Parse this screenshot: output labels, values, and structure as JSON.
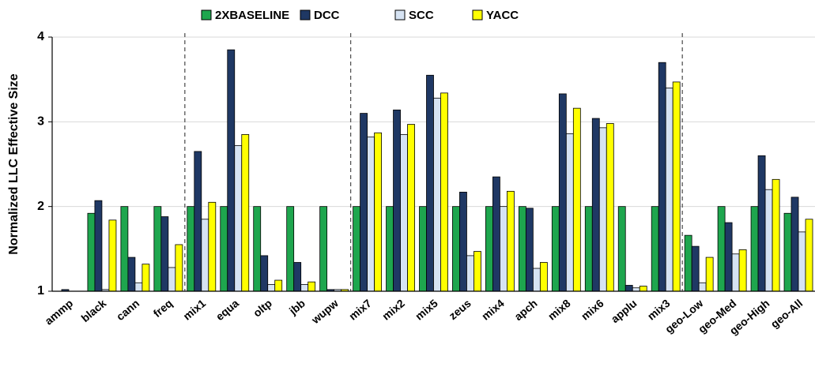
{
  "chart_data": {
    "type": "bar",
    "y_label": "Normalized LLC Effective Size",
    "categories": [
      "ammp",
      "black",
      "cann",
      "freq",
      "mix1",
      "equa",
      "oltp",
      "jbb",
      "wupw",
      "mix7",
      "mix2",
      "mix5",
      "zeus",
      "mix4",
      "apch",
      "mix8",
      "mix6",
      "applu",
      "mix3",
      "geo-Low",
      "geo-Med",
      "geo-High",
      "geo-All"
    ],
    "series": [
      {
        "name": "2XBASELINE",
        "color": "#1ea64e",
        "values": [
          1.0,
          1.92,
          2.0,
          2.0,
          2.0,
          2.0,
          2.0,
          2.0,
          2.0,
          2.0,
          2.0,
          2.0,
          2.0,
          2.0,
          2.0,
          2.0,
          2.0,
          2.0,
          2.0,
          1.66,
          2.0,
          2.0,
          1.92
        ]
      },
      {
        "name": "DCC",
        "color": "#1f3864",
        "values": [
          1.02,
          2.07,
          1.4,
          1.88,
          2.65,
          3.85,
          1.42,
          1.34,
          1.02,
          3.1,
          3.14,
          3.55,
          2.17,
          2.35,
          1.98,
          3.33,
          3.04,
          1.07,
          3.7,
          1.53,
          1.81,
          2.6,
          2.11
        ]
      },
      {
        "name": "SCC",
        "color": "#d6e3f3",
        "values": [
          1.0,
          1.02,
          1.1,
          1.28,
          1.85,
          2.72,
          1.08,
          1.08,
          1.02,
          2.82,
          2.85,
          3.28,
          1.42,
          2.0,
          1.27,
          2.86,
          2.93,
          1.04,
          3.4,
          1.1,
          1.44,
          2.2,
          1.7
        ]
      },
      {
        "name": "YACC",
        "color": "#ffff00",
        "values": [
          1.0,
          1.84,
          1.32,
          1.55,
          2.05,
          2.85,
          1.13,
          1.11,
          1.02,
          2.87,
          2.97,
          3.34,
          1.47,
          2.18,
          1.34,
          3.16,
          2.98,
          1.06,
          3.47,
          1.4,
          1.49,
          2.32,
          1.85
        ]
      }
    ],
    "ylim": [
      1,
      4
    ],
    "yticks": [
      1,
      2,
      3,
      4
    ],
    "grid": true,
    "legend": "top"
  }
}
